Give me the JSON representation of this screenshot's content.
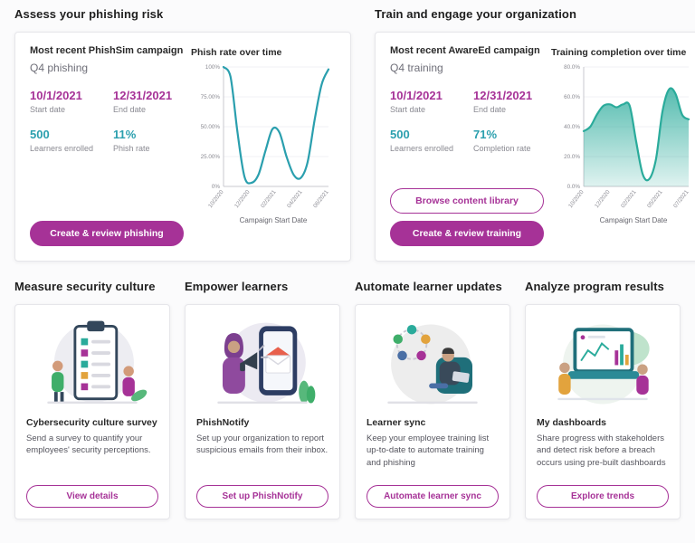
{
  "colors": {
    "accent": "#a63297",
    "teal": "#2a9fae"
  },
  "sections": {
    "assess": "Assess your phishing risk",
    "train": "Train and engage your organization",
    "measure": "Measure security culture",
    "empower": "Empower learners",
    "automate": "Automate learner updates",
    "analyze": "Analyze program results"
  },
  "phishsim_card": {
    "heading": "Most recent PhishSim campaign",
    "campaign_name": "Q4 phishing",
    "stats": [
      {
        "value": "10/1/2021",
        "label": "Start date"
      },
      {
        "value": "12/31/2021",
        "label": "End date"
      },
      {
        "value": "500",
        "label": "Learners enrolled"
      },
      {
        "value": "11%",
        "label": "Phish rate"
      }
    ],
    "primary_button": "Create & review phishing"
  },
  "awareed_card": {
    "heading": "Most recent AwareEd campaign",
    "campaign_name": "Q4 training",
    "stats": [
      {
        "value": "10/1/2021",
        "label": "Start date"
      },
      {
        "value": "12/31/2021",
        "label": "End date"
      },
      {
        "value": "500",
        "label": "Learners enrolled"
      },
      {
        "value": "71%",
        "label": "Completion rate"
      }
    ],
    "secondary_button": "Browse content library",
    "primary_button": "Create & review training"
  },
  "chart_data": [
    {
      "type": "line",
      "title": "Phish rate over time",
      "xlabel": "Campaign Start Date",
      "ylabel": "",
      "x_ticks": [
        "10/2020",
        "12/2020",
        "02/2021",
        "04/2021",
        "06/2021"
      ],
      "y_ticks": [
        "0%",
        "25.00%",
        "50.00%",
        "75.00%",
        "100%"
      ],
      "ylim": [
        0,
        100
      ],
      "values": [
        100,
        92,
        45,
        8,
        3,
        10,
        30,
        48,
        45,
        25,
        10,
        7,
        20,
        55,
        85,
        98
      ],
      "color": "#2a9fae",
      "grid": true,
      "legend": "none"
    },
    {
      "type": "area",
      "title": "Training completion over time",
      "xlabel": "Campaign Start Date",
      "ylabel": "",
      "x_ticks": [
        "10/2020",
        "12/2020",
        "02/2021",
        "05/2021",
        "07/2021"
      ],
      "y_ticks": [
        "0.0%",
        "20.0%",
        "40.0%",
        "60.0%",
        "80.0%"
      ],
      "ylim": [
        0,
        80
      ],
      "values": [
        37,
        40,
        48,
        54,
        55,
        53,
        55,
        54,
        30,
        8,
        5,
        18,
        50,
        65,
        62,
        48,
        45
      ],
      "color": "#2aab9b",
      "grid": true,
      "legend": "none"
    }
  ],
  "feature_cards": [
    {
      "title": "Cybersecurity culture survey",
      "description": "Send a survey to quantify your employees' security perceptions.",
      "button": "View details"
    },
    {
      "title": "PhishNotify",
      "description": "Set up your organization to report suspicious emails from their inbox.",
      "button": "Set up PhishNotify"
    },
    {
      "title": "Learner sync",
      "description": "Keep your employee training list up-to-date to automate training and phishing",
      "button": "Automate learner sync"
    },
    {
      "title": "My dashboards",
      "description": "Share progress with stakeholders and detect risk before a breach occurs using pre-built dashboards",
      "button": "Explore trends"
    }
  ]
}
